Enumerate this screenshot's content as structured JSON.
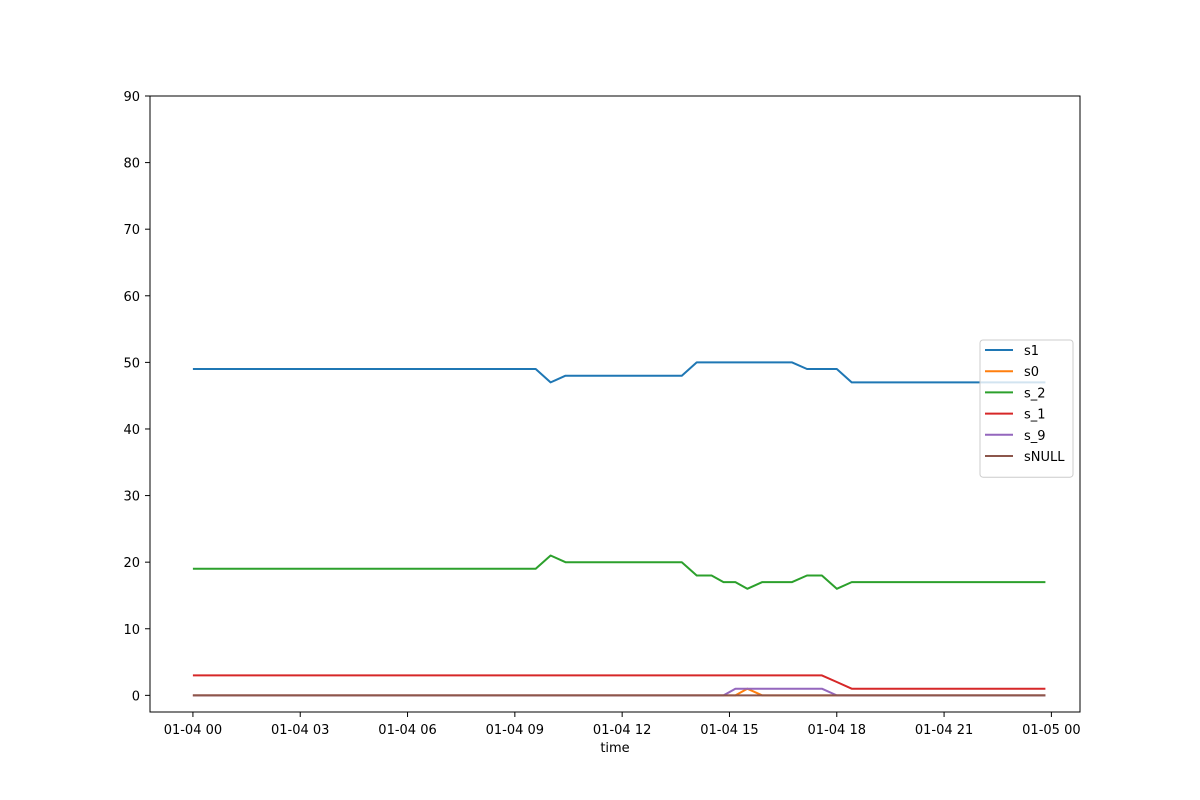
{
  "chart_data": {
    "type": "line",
    "title": "",
    "xlabel": "time",
    "ylabel": "",
    "ylim": [
      -2.5,
      90
    ],
    "yticks": [
      0,
      10,
      20,
      30,
      40,
      50,
      60,
      70,
      80,
      90
    ],
    "xlim": [
      "01-03 22:48",
      "01-05 00:48"
    ],
    "xticks": [
      "01-04 00",
      "01-04 03",
      "01-04 06",
      "01-04 09",
      "01-04 12",
      "01-04 15",
      "01-04 18",
      "01-04 21",
      "01-05 00"
    ],
    "grid": false,
    "legend_position": "center-right",
    "x": [
      "01-04 00:00",
      "01-04 09:35",
      "01-04 10:00",
      "01-04 10:25",
      "01-04 13:40",
      "01-04 14:05",
      "01-04 14:30",
      "01-04 14:50",
      "01-04 15:10",
      "01-04 15:30",
      "01-04 15:55",
      "01-04 16:45",
      "01-04 17:10",
      "01-04 17:35",
      "01-04 18:00",
      "01-04 18:25",
      "01-04 23:50"
    ],
    "series": [
      {
        "name": "s1",
        "color": "#1f77b4",
        "values": [
          49,
          49,
          47,
          48,
          48,
          50,
          50,
          50,
          50,
          50,
          50,
          50,
          49,
          49,
          49,
          47,
          47
        ]
      },
      {
        "name": "s0",
        "color": "#ff7f0e",
        "values": [
          0,
          0,
          0,
          0,
          0,
          0,
          0,
          0,
          0,
          1,
          0,
          0,
          0,
          0,
          0,
          0,
          0
        ]
      },
      {
        "name": "s_2",
        "color": "#2ca02c",
        "values": [
          19,
          19,
          21,
          20,
          20,
          18,
          18,
          17,
          17,
          16,
          17,
          17,
          18,
          18,
          16,
          17,
          17
        ]
      },
      {
        "name": "s_1",
        "color": "#d62728",
        "values": [
          3,
          3,
          3,
          3,
          3,
          3,
          3,
          3,
          3,
          3,
          3,
          3,
          3,
          3,
          2,
          1,
          1
        ]
      },
      {
        "name": "s_9",
        "color": "#9467bd",
        "values": [
          0,
          0,
          0,
          0,
          0,
          0,
          0,
          0,
          1,
          1,
          1,
          1,
          1,
          1,
          0,
          0,
          0
        ]
      },
      {
        "name": "sNULL",
        "color": "#8c564b",
        "values": [
          0,
          0,
          0,
          0,
          0,
          0,
          0,
          0,
          0,
          0,
          0,
          0,
          0,
          0,
          0,
          0,
          0
        ]
      }
    ]
  }
}
